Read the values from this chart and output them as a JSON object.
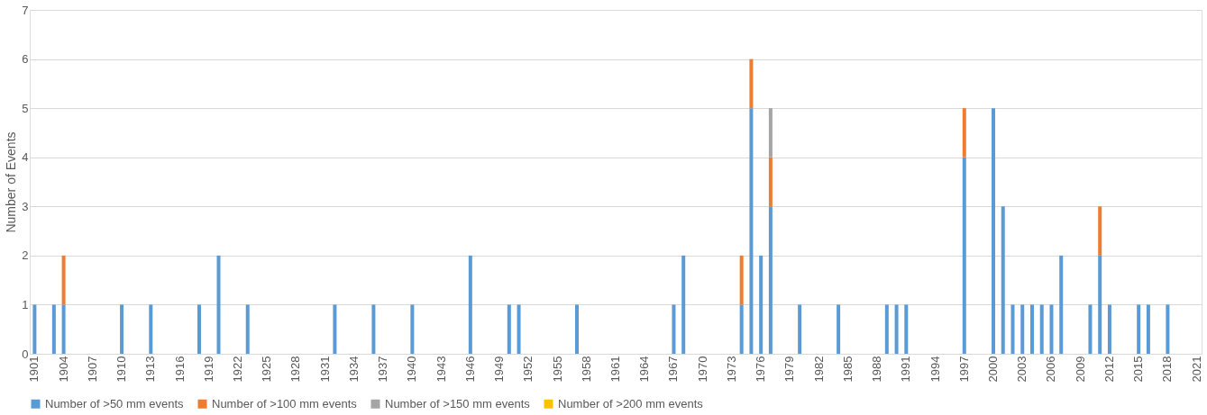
{
  "chart_data": {
    "type": "bar",
    "stacked": true,
    "ylabel": "Number of Events",
    "categories": [
      "1901",
      null,
      null,
      "1904",
      null,
      null,
      "1907",
      null,
      null,
      "1910",
      null,
      null,
      "1913",
      null,
      null,
      "1916",
      null,
      null,
      "1919",
      null,
      null,
      "1922",
      null,
      null,
      "1925",
      null,
      null,
      "1928",
      null,
      null,
      "1931",
      null,
      null,
      "1934",
      null,
      null,
      "1937",
      null,
      null,
      "1940",
      null,
      null,
      "1943",
      null,
      null,
      "1946",
      null,
      null,
      "1949",
      null,
      null,
      "1952",
      null,
      null,
      "1955",
      null,
      null,
      "1958",
      null,
      null,
      "1961",
      null,
      null,
      "1964",
      null,
      null,
      "1967",
      null,
      null,
      "1970",
      null,
      null,
      "1973",
      null,
      null,
      "1976",
      null,
      null,
      "1979",
      null,
      null,
      "1982",
      null,
      null,
      "1985",
      null,
      null,
      "1988",
      null,
      null,
      "1991",
      null,
      null,
      "1994",
      null,
      null,
      "1997",
      null,
      null,
      "2000",
      null,
      null,
      "2003",
      null,
      null,
      "2006",
      null,
      null,
      "2009",
      null,
      null,
      "2012",
      null,
      null,
      "2015",
      null,
      null,
      "2018",
      null,
      null,
      "2021"
    ],
    "series": [
      {
        "name": "Number of >50 mm events",
        "color": "#5b9bd5",
        "values": [
          1,
          0,
          1,
          1,
          0,
          0,
          0,
          0,
          0,
          1,
          0,
          0,
          1,
          0,
          0,
          0,
          0,
          1,
          0,
          2,
          0,
          0,
          1,
          0,
          0,
          0,
          0,
          0,
          0,
          0,
          0,
          1,
          0,
          0,
          0,
          1,
          0,
          0,
          0,
          1,
          0,
          0,
          0,
          0,
          0,
          2,
          0,
          0,
          0,
          1,
          1,
          0,
          0,
          0,
          0,
          0,
          1,
          0,
          0,
          0,
          0,
          0,
          0,
          0,
          0,
          0,
          1,
          2,
          0,
          0,
          0,
          0,
          0,
          1,
          5,
          2,
          3,
          0,
          0,
          1,
          0,
          0,
          0,
          1,
          0,
          0,
          0,
          0,
          1,
          1,
          1,
          0,
          0,
          0,
          0,
          0,
          4,
          0,
          0,
          5,
          3,
          1,
          1,
          1,
          1,
          1,
          2,
          0,
          0,
          1,
          2,
          1,
          0,
          0,
          1,
          1,
          0,
          1,
          0,
          0,
          0
        ]
      },
      {
        "name": "Number of >100 mm events",
        "color": "#ed7d31",
        "values": [
          0,
          0,
          0,
          1,
          0,
          0,
          0,
          0,
          0,
          0,
          0,
          0,
          0,
          0,
          0,
          0,
          0,
          0,
          0,
          0,
          0,
          0,
          0,
          0,
          0,
          0,
          0,
          0,
          0,
          0,
          0,
          0,
          0,
          0,
          0,
          0,
          0,
          0,
          0,
          0,
          0,
          0,
          0,
          0,
          0,
          0,
          0,
          0,
          0,
          0,
          0,
          0,
          0,
          0,
          0,
          0,
          0,
          0,
          0,
          0,
          0,
          0,
          0,
          0,
          0,
          0,
          0,
          0,
          0,
          0,
          0,
          0,
          0,
          1,
          1,
          0,
          1,
          0,
          0,
          0,
          0,
          0,
          0,
          0,
          0,
          0,
          0,
          0,
          0,
          0,
          0,
          0,
          0,
          0,
          0,
          0,
          1,
          0,
          0,
          0,
          0,
          0,
          0,
          0,
          0,
          0,
          0,
          0,
          0,
          0,
          1,
          0,
          0,
          0,
          0,
          0,
          0,
          0,
          0,
          0,
          0
        ]
      },
      {
        "name": "Number of >150 mm events",
        "color": "#a5a5a5",
        "values": [
          0,
          0,
          0,
          0,
          0,
          0,
          0,
          0,
          0,
          0,
          0,
          0,
          0,
          0,
          0,
          0,
          0,
          0,
          0,
          0,
          0,
          0,
          0,
          0,
          0,
          0,
          0,
          0,
          0,
          0,
          0,
          0,
          0,
          0,
          0,
          0,
          0,
          0,
          0,
          0,
          0,
          0,
          0,
          0,
          0,
          0,
          0,
          0,
          0,
          0,
          0,
          0,
          0,
          0,
          0,
          0,
          0,
          0,
          0,
          0,
          0,
          0,
          0,
          0,
          0,
          0,
          0,
          0,
          0,
          0,
          0,
          0,
          0,
          0,
          0,
          0,
          1,
          0,
          0,
          0,
          0,
          0,
          0,
          0,
          0,
          0,
          0,
          0,
          0,
          0,
          0,
          0,
          0,
          0,
          0,
          0,
          0,
          0,
          0,
          0,
          0,
          0,
          0,
          0,
          0,
          0,
          0,
          0,
          0,
          0,
          0,
          0,
          0,
          0,
          0,
          0,
          0,
          0,
          0,
          0,
          0
        ]
      },
      {
        "name": "Number of >200 mm events",
        "color": "#ffc000",
        "values": [
          0,
          0,
          0,
          0,
          0,
          0,
          0,
          0,
          0,
          0,
          0,
          0,
          0,
          0,
          0,
          0,
          0,
          0,
          0,
          0,
          0,
          0,
          0,
          0,
          0,
          0,
          0,
          0,
          0,
          0,
          0,
          0,
          0,
          0,
          0,
          0,
          0,
          0,
          0,
          0,
          0,
          0,
          0,
          0,
          0,
          0,
          0,
          0,
          0,
          0,
          0,
          0,
          0,
          0,
          0,
          0,
          0,
          0,
          0,
          0,
          0,
          0,
          0,
          0,
          0,
          0,
          0,
          0,
          0,
          0,
          0,
          0,
          0,
          0,
          0,
          0,
          0,
          0,
          0,
          0,
          0,
          0,
          0,
          0,
          0,
          0,
          0,
          0,
          0,
          0,
          0,
          0,
          0,
          0,
          0,
          0,
          0,
          0,
          0,
          0,
          0,
          0,
          0,
          0,
          0,
          0,
          0,
          0,
          0,
          0,
          0,
          0,
          0,
          0,
          0,
          0,
          0,
          0,
          0,
          0,
          0
        ]
      }
    ],
    "ylim": [
      0,
      7
    ],
    "yticks": [
      0,
      1,
      2,
      3,
      4,
      5,
      6,
      7
    ],
    "grid": "y",
    "legend": "bottom"
  }
}
